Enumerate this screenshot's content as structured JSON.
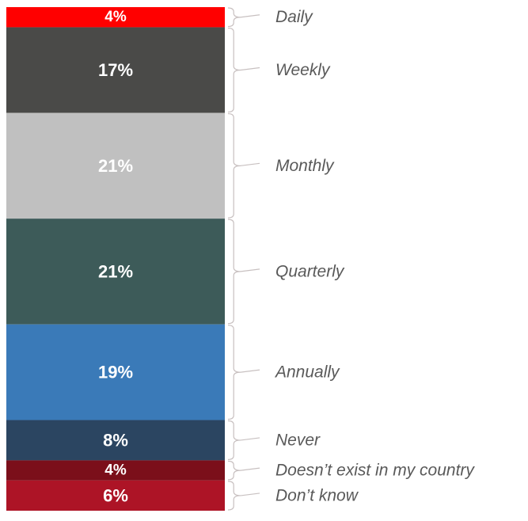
{
  "chart_data": {
    "type": "bar",
    "orientation": "stacked-vertical",
    "title": "",
    "xlabel": "",
    "ylabel": "",
    "unit": "%",
    "categories": [
      "Daily",
      "Weekly",
      "Monthly",
      "Quarterly",
      "Annually",
      "Never",
      "Doesn’t exist in my country",
      "Don’t know"
    ],
    "values": [
      4,
      17,
      21,
      21,
      19,
      8,
      4,
      6
    ],
    "labels": [
      "4%",
      "17%",
      "21%",
      "21%",
      "19%",
      "8%",
      "4%",
      "6%"
    ],
    "colors": [
      "#ff0000",
      "#4a4a48",
      "#c0c0c0",
      "#3d5b59",
      "#3a7ab8",
      "#2b4561",
      "#7b0f1a",
      "#ad1426"
    ],
    "legend": "right (brackets)",
    "grid": false
  }
}
